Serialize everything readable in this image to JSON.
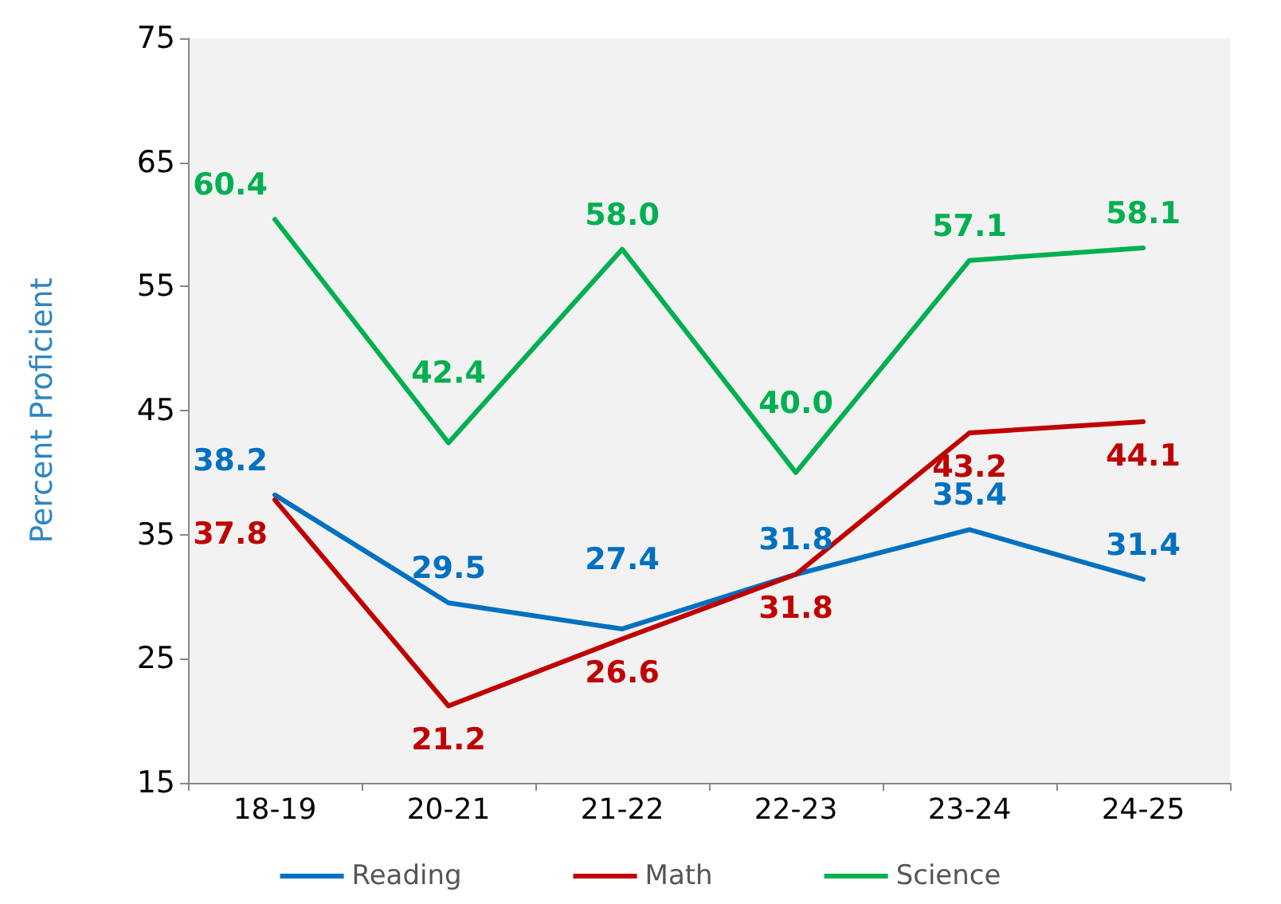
{
  "chart_data": {
    "type": "line",
    "ylabel": "Percent Proficient",
    "categories": [
      "18-19",
      "20-21",
      "21-22",
      "22-23",
      "23-24",
      "24-25"
    ],
    "series": [
      {
        "name": "Reading",
        "color": "#0070c0",
        "values": [
          38.2,
          29.5,
          27.4,
          31.8,
          35.4,
          31.4
        ],
        "value_labels": [
          "38.2",
          "29.5",
          "27.4",
          "31.8",
          "35.4",
          "31.4"
        ]
      },
      {
        "name": "Math",
        "color": "#c00000",
        "values": [
          37.8,
          21.2,
          26.6,
          31.8,
          43.2,
          44.1
        ],
        "value_labels": [
          "37.8",
          "21.2",
          "26.6",
          "31.8",
          "43.2",
          "44.1"
        ]
      },
      {
        "name": "Science",
        "color": "#00b050",
        "values": [
          60.4,
          42.4,
          58.0,
          40.0,
          57.1,
          58.1
        ],
        "value_labels": [
          "60.4",
          "42.4",
          "58.0",
          "40.0",
          "57.1",
          "58.1"
        ]
      }
    ],
    "ylim": [
      15,
      75
    ],
    "yticks": [
      15,
      25,
      35,
      45,
      55,
      65,
      75
    ],
    "grid": false,
    "legend": "bottom",
    "marker": "none",
    "line_style": "solid"
  }
}
